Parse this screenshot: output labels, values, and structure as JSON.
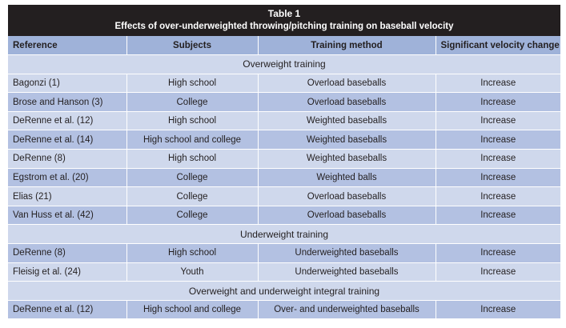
{
  "table": {
    "title": "Table 1",
    "subtitle": "Effects of over-underweighted throwing/pitching training on baseball velocity",
    "headers": [
      "Reference",
      "Subjects",
      "Training method",
      "Significant velocity change"
    ],
    "sections": [
      {
        "label": "Overweight training",
        "rows": [
          [
            "Bagonzi (1)",
            "High school",
            "Overload baseballs",
            "Increase"
          ],
          [
            "Brose and Hanson (3)",
            "College",
            "Overload baseballs",
            "Increase"
          ],
          [
            "DeRenne et al. (12)",
            "High school",
            "Weighted baseballs",
            "Increase"
          ],
          [
            "DeRenne et al. (14)",
            "High school and college",
            "Weighted baseballs",
            "Increase"
          ],
          [
            "DeRenne (8)",
            "High school",
            "Weighted baseballs",
            "Increase"
          ],
          [
            "Egstrom et al. (20)",
            "College",
            "Weighted balls",
            "Increase"
          ],
          [
            "Elias (21)",
            "College",
            "Overload baseballs",
            "Increase"
          ],
          [
            "Van Huss et al. (42)",
            "College",
            "Overload baseballs",
            "Increase"
          ]
        ]
      },
      {
        "label": "Underweight training",
        "rows": [
          [
            "DeRenne (8)",
            "High school",
            "Underweighted baseballs",
            "Increase"
          ],
          [
            "Fleisig et al. (24)",
            "Youth",
            "Underweighted baseballs",
            "Increase"
          ]
        ]
      },
      {
        "label": "Overweight and underweight integral training",
        "rows": [
          [
            "DeRenne et al. (12)",
            "High school and college",
            "Over- and underweighted baseballs",
            "Increase"
          ]
        ]
      }
    ]
  }
}
